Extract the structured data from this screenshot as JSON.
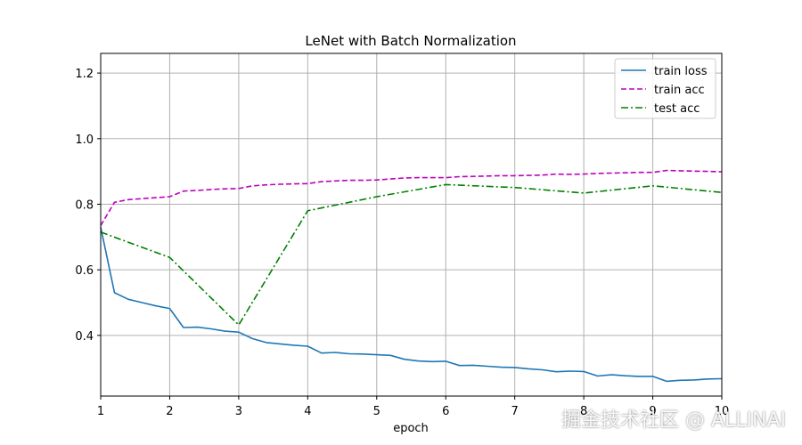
{
  "chart_data": {
    "type": "line",
    "title": "LeNet with Batch Normalization",
    "xlabel": "epoch",
    "ylabel": "",
    "xlim": [
      1,
      10
    ],
    "ylim": [
      0.215,
      1.26
    ],
    "xticks": [
      1,
      2,
      3,
      4,
      5,
      6,
      7,
      8,
      9,
      10
    ],
    "yticks": [
      0.4,
      0.6,
      0.8,
      1.0,
      1.2
    ],
    "ytick_labels": [
      "0.4",
      "0.6",
      "0.8",
      "1.0",
      "1.2"
    ],
    "grid": true,
    "legend_position": "top-right",
    "series": [
      {
        "name": "train loss",
        "color": "#1f77b4",
        "style": "solid",
        "x": [
          1.0,
          1.2,
          1.4,
          1.6,
          1.8,
          2.0,
          2.2,
          2.4,
          2.6,
          2.8,
          3.0,
          3.2,
          3.4,
          3.6,
          3.8,
          4.0,
          4.2,
          4.4,
          4.6,
          4.8,
          5.0,
          5.2,
          5.4,
          5.6,
          5.8,
          6.0,
          6.2,
          6.4,
          6.6,
          6.8,
          7.0,
          7.2,
          7.4,
          7.6,
          7.8,
          8.0,
          8.2,
          8.4,
          8.6,
          8.8,
          9.0,
          9.2,
          9.4,
          9.6,
          9.8,
          10.0
        ],
        "y": [
          0.73,
          0.53,
          0.51,
          0.5,
          0.49,
          0.482,
          0.424,
          0.425,
          0.42,
          0.413,
          0.41,
          0.39,
          0.378,
          0.374,
          0.37,
          0.367,
          0.346,
          0.348,
          0.344,
          0.343,
          0.341,
          0.339,
          0.327,
          0.322,
          0.32,
          0.321,
          0.308,
          0.309,
          0.306,
          0.303,
          0.302,
          0.298,
          0.295,
          0.289,
          0.291,
          0.29,
          0.276,
          0.28,
          0.277,
          0.275,
          0.275,
          0.26,
          0.263,
          0.264,
          0.267,
          0.268
        ]
      },
      {
        "name": "train acc",
        "color": "#bf00bf",
        "style": "dashed",
        "x": [
          1.0,
          1.2,
          1.4,
          1.6,
          1.8,
          2.0,
          2.2,
          2.4,
          2.6,
          2.8,
          3.0,
          3.2,
          3.4,
          3.6,
          3.8,
          4.0,
          4.2,
          4.4,
          4.6,
          4.8,
          5.0,
          5.2,
          5.4,
          5.6,
          5.8,
          6.0,
          6.2,
          6.4,
          6.6,
          6.8,
          7.0,
          7.2,
          7.4,
          7.6,
          7.8,
          8.0,
          8.2,
          8.4,
          8.6,
          8.8,
          9.0,
          9.2,
          9.4,
          9.6,
          9.8,
          10.0
        ],
        "y": [
          0.735,
          0.806,
          0.814,
          0.817,
          0.82,
          0.823,
          0.84,
          0.842,
          0.845,
          0.847,
          0.848,
          0.856,
          0.859,
          0.861,
          0.862,
          0.863,
          0.869,
          0.871,
          0.873,
          0.873,
          0.874,
          0.877,
          0.88,
          0.881,
          0.881,
          0.881,
          0.884,
          0.885,
          0.886,
          0.887,
          0.887,
          0.888,
          0.889,
          0.892,
          0.891,
          0.892,
          0.894,
          0.895,
          0.896,
          0.897,
          0.897,
          0.903,
          0.902,
          0.901,
          0.9,
          0.899
        ]
      },
      {
        "name": "test acc",
        "color": "#008000",
        "style": "dashdot",
        "x": [
          1,
          2,
          3,
          4,
          5,
          6,
          7,
          8,
          9,
          10
        ],
        "y": [
          0.715,
          0.638,
          0.432,
          0.78,
          0.823,
          0.86,
          0.851,
          0.834,
          0.856,
          0.836
        ]
      }
    ]
  },
  "watermark": "掘金技术社区 @ ALLINAI"
}
